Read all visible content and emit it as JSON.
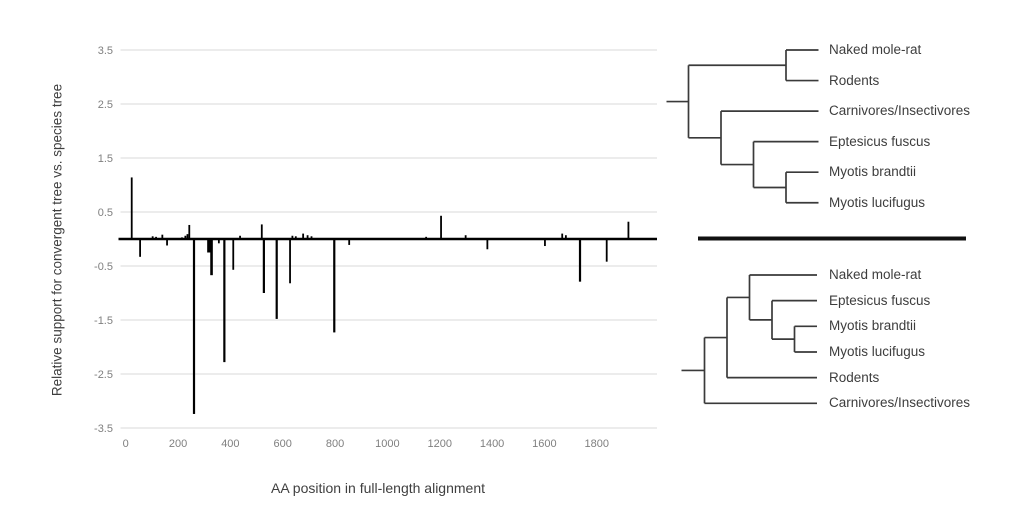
{
  "figure": {
    "background_color": "#ffffff",
    "description": "Per-site relative likelihood support bar chart with species tree and convergent tree cladograms"
  },
  "chart_data": {
    "type": "bar",
    "title": "",
    "xlabel": "AA position in full-length alignment",
    "ylabel": "Relative support for convergent tree vs. species tree",
    "xlim": [
      0,
      2030
    ],
    "ylim": [
      -3.5,
      3.5
    ],
    "xticks": [
      0,
      200,
      400,
      600,
      800,
      1000,
      1200,
      1400,
      1600,
      1800
    ],
    "yticks": [
      3.5,
      2.5,
      1.5,
      0.5,
      -0.5,
      -1.5,
      -2.5,
      -3.5
    ],
    "grid": true,
    "legend": false,
    "bar_color": "#000000",
    "axis_line_color": "#000000",
    "gridline_color": "#d9d9d9",
    "tick_label_color": "#7f7f7f",
    "axis_title_color": "#3f3f3f",
    "bars": [
      {
        "x": 23,
        "v": 1.14
      },
      {
        "x": 55,
        "v": -0.33
      },
      {
        "x": 103,
        "v": 0.05
      },
      {
        "x": 116,
        "v": 0.04
      },
      {
        "x": 140,
        "v": 0.08
      },
      {
        "x": 158,
        "v": -0.12
      },
      {
        "x": 215,
        "v": 0.03
      },
      {
        "x": 228,
        "v": 0.06
      },
      {
        "x": 236,
        "v": 0.09
      },
      {
        "x": 243,
        "v": 0.26
      },
      {
        "x": 261,
        "v": -3.24,
        "w": 2.2
      },
      {
        "x": 318,
        "v": -0.25,
        "w": 3.5
      },
      {
        "x": 328,
        "v": -0.67,
        "w": 2.6
      },
      {
        "x": 356,
        "v": -0.08
      },
      {
        "x": 377,
        "v": -2.28,
        "w": 2.2
      },
      {
        "x": 411,
        "v": -0.57
      },
      {
        "x": 437,
        "v": 0.06
      },
      {
        "x": 520,
        "v": 0.27
      },
      {
        "x": 528,
        "v": -1.0,
        "w": 2.2
      },
      {
        "x": 577,
        "v": -1.48,
        "w": 2.2
      },
      {
        "x": 628,
        "v": -0.82
      },
      {
        "x": 637,
        "v": 0.06
      },
      {
        "x": 650,
        "v": 0.05
      },
      {
        "x": 678,
        "v": 0.1
      },
      {
        "x": 695,
        "v": 0.07
      },
      {
        "x": 710,
        "v": 0.05
      },
      {
        "x": 797,
        "v": -1.73,
        "w": 2.2
      },
      {
        "x": 854,
        "v": -0.11
      },
      {
        "x": 1148,
        "v": 0.04
      },
      {
        "x": 1205,
        "v": 0.43
      },
      {
        "x": 1299,
        "v": 0.07
      },
      {
        "x": 1382,
        "v": -0.19
      },
      {
        "x": 1602,
        "v": -0.13
      },
      {
        "x": 1668,
        "v": 0.1
      },
      {
        "x": 1682,
        "v": 0.07
      },
      {
        "x": 1736,
        "v": -0.79,
        "w": 2.2
      },
      {
        "x": 1838,
        "v": -0.42
      },
      {
        "x": 1921,
        "v": 0.32
      }
    ]
  },
  "trees": {
    "line_color": "#3a3a3a",
    "label_color": "#3d3d3d",
    "divider_color": "#111111",
    "species_tree": {
      "leaves": [
        "Naked mole-rat",
        "Rodents",
        "Carnivores/Insectivores",
        "Eptesicus fuscus",
        "Myotis brandtii",
        "Myotis lucifugus"
      ],
      "topology": [
        [
          "Naked mole-rat",
          "Rodents"
        ],
        [
          "Carnivores/Insectivores",
          [
            "Eptesicus fuscus",
            [
              "Myotis brandtii",
              "Myotis lucifugus"
            ]
          ]
        ]
      ]
    },
    "convergent_tree": {
      "leaves": [
        "Naked mole-rat",
        "Eptesicus fuscus",
        "Myotis brandtii",
        "Myotis lucifugus",
        "Rodents",
        "Carnivores/Insectivores"
      ],
      "topology": [
        [
          [
            "Naked mole-rat",
            [
              "Eptesicus fuscus",
              [
                "Myotis brandtii",
                "Myotis lucifugus"
              ]
            ]
          ],
          "Rodents"
        ],
        "Carnivores/Insectivores"
      ]
    }
  }
}
